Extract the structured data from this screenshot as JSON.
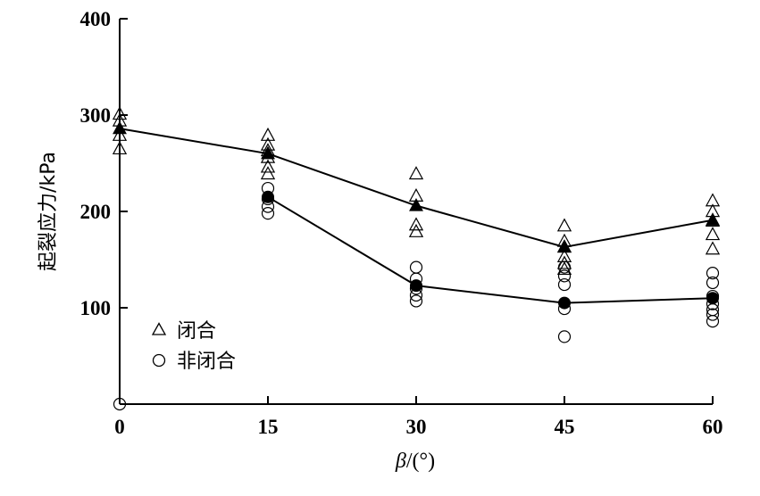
{
  "chart_data": {
    "type": "scatter",
    "xlabel_symbol": "β",
    "xlabel_unit": "/(°)",
    "ylabel": "起裂应力/kPa",
    "xlim": [
      0,
      60
    ],
    "ylim": [
      0,
      400
    ],
    "xticks": [
      0,
      15,
      30,
      45,
      60
    ],
    "yticks": [
      100,
      200,
      300,
      400
    ],
    "ytick_labels_shown": [
      "100",
      "200",
      "300",
      "400"
    ],
    "xtick_labels_shown": [
      "0",
      "15",
      "30",
      "45",
      "60"
    ],
    "legend_position": "bottom-left",
    "series": [
      {
        "name": "闭合",
        "marker": "open-triangle",
        "points": [
          [
            0,
            301
          ],
          [
            0,
            294
          ],
          [
            0,
            279
          ],
          [
            0,
            265
          ],
          [
            15,
            279
          ],
          [
            15,
            269
          ],
          [
            15,
            263
          ],
          [
            15,
            256
          ],
          [
            15,
            246
          ],
          [
            15,
            239
          ],
          [
            30,
            239
          ],
          [
            30,
            216
          ],
          [
            30,
            186
          ],
          [
            30,
            179
          ],
          [
            45,
            185
          ],
          [
            45,
            169
          ],
          [
            45,
            163
          ],
          [
            45,
            153
          ],
          [
            45,
            146
          ],
          [
            45,
            140
          ],
          [
            60,
            211
          ],
          [
            60,
            200
          ],
          [
            60,
            190
          ],
          [
            60,
            176
          ],
          [
            60,
            161
          ]
        ]
      },
      {
        "name": "闭合-mean",
        "marker": "filled-triangle-line",
        "x": [
          0,
          15,
          30,
          45,
          60
        ],
        "values": [
          286,
          260,
          206,
          163,
          191
        ]
      },
      {
        "name": "非闭合",
        "marker": "open-circle",
        "points": [
          [
            0,
            0
          ],
          [
            15,
            224
          ],
          [
            15,
            213
          ],
          [
            15,
            205
          ],
          [
            15,
            198
          ],
          [
            30,
            142
          ],
          [
            30,
            130
          ],
          [
            30,
            120
          ],
          [
            30,
            113
          ],
          [
            30,
            107
          ],
          [
            45,
            142
          ],
          [
            45,
            133
          ],
          [
            45,
            124
          ],
          [
            45,
            99
          ],
          [
            45,
            70
          ],
          [
            60,
            136
          ],
          [
            60,
            126
          ],
          [
            60,
            112
          ],
          [
            60,
            104
          ],
          [
            60,
            98
          ],
          [
            60,
            93
          ],
          [
            60,
            86
          ]
        ]
      },
      {
        "name": "非闭合-mean",
        "marker": "filled-circle-line",
        "x": [
          15,
          30,
          45,
          60
        ],
        "values": [
          215,
          123,
          105,
          110
        ]
      }
    ],
    "legend": [
      {
        "symbol": "△",
        "label": "闭合"
      },
      {
        "symbol": "○",
        "label": "非闭合"
      }
    ]
  }
}
